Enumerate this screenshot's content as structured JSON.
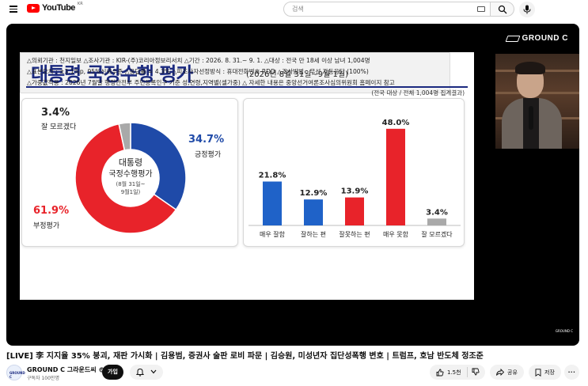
{
  "header": {
    "logo_text": "YouTube",
    "logo_region": "KR",
    "search_placeholder": "검색"
  },
  "player": {
    "overlay_logo": "GROUND C",
    "corner_mark": "GROUND C",
    "slide": {
      "title": "대통령 국정수행 평가",
      "subtitle": "(2026년 8월 31일~9월 1일)",
      "sample_note": "(전국 대상 / 전체 1,004명 집계결과)",
      "pie_center": {
        "line1": "대통령",
        "line2": "국정수행평가",
        "line3": "(8월 31일~",
        "line4": "9월1일)"
      },
      "notes": [
        "△의뢰기관 : 천지일보   △조사기관 : KIR-(주)코리아정보리서치   △기간 : 2026. 8. 31.~ 9. 1.   △대상 : 전국 만 18세 이상 남녀 1,004명",
        "△표본오차 : ±3.1%p, 95%신뢰수준   △응답률 = 4.3%   △피조사자선정방식 : 휴대전화번호 RDD   △조사방법 : 무선 자동응답 (100%)",
        "△가중값적용 : 2026년 7월말 행정안전부 주민등록인구 기준 성,연령,지역별(셀가중)   △ 자세한 내용은 중앙선거여론조사심의위원회 홈페이지 참고"
      ]
    }
  },
  "chart_data": [
    {
      "type": "pie",
      "title": "",
      "slices": [
        {
          "label": "긍정평가",
          "value": 34.7,
          "color": "#1f4aa8"
        },
        {
          "label": "부정평가",
          "value": 61.9,
          "color": "#e8232a"
        },
        {
          "label": "잘 모르겠다",
          "value": 3.4,
          "color": "#a9a9a9"
        }
      ],
      "labels_text": {
        "positive_pct": "34.7%",
        "positive": "긍정평가",
        "negative_pct": "61.9%",
        "negative": "부정평가",
        "unknown_pct": "3.4%",
        "unknown": "잘 모르겠다"
      }
    },
    {
      "type": "bar",
      "categories": [
        "매우 잘함",
        "잘하는 편",
        "잘못하는 편",
        "매우 못함",
        "잘 모르겠다"
      ],
      "values": [
        21.8,
        12.9,
        13.9,
        48.0,
        3.4
      ],
      "value_labels": [
        "21.8%",
        "12.9%",
        "13.9%",
        "48.0%",
        "3.4%"
      ],
      "colors": [
        "#1f62c8",
        "#1f62c8",
        "#e8232a",
        "#e8232a",
        "#a9a9a9"
      ],
      "ylim": [
        0,
        55
      ]
    }
  ],
  "video": {
    "title": "[LIVE] 李 지지율 35% 붕괴, 재판 가시화 | 김용범, 증권사 술판 로비 파문 | 김승원, 미성년자 집단성폭행 변호 | 트럼프, 호남 반도체 정조준",
    "channel_name": "GROUND C 그라운드씨",
    "subscribers": "구독자 100만명",
    "avatar_text": "GROUND C",
    "join_label": "가입",
    "like_count": "1.5천",
    "share_label": "공유",
    "save_label": "저장",
    "more_label": "···"
  }
}
